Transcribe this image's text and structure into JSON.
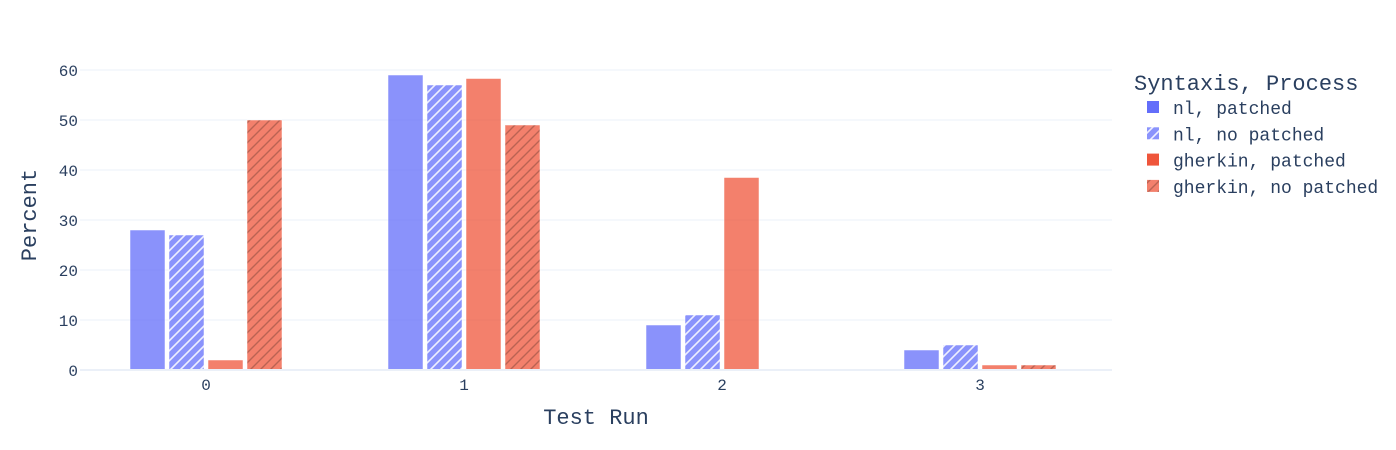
{
  "chart_data": {
    "type": "bar",
    "xlabel": "Test Run",
    "ylabel": "Percent",
    "categories": [
      "0",
      "1",
      "2",
      "3"
    ],
    "ylim": [
      0,
      62
    ],
    "yticks": [
      0,
      10,
      20,
      30,
      40,
      50,
      60
    ],
    "grid": true,
    "legend": {
      "title": "Syntaxis, Process",
      "placement": "right"
    },
    "series": [
      {
        "name": "nl, patched",
        "values": [
          28,
          59,
          9,
          4
        ],
        "color": "#636efa",
        "pattern": "none"
      },
      {
        "name": "nl, no patched",
        "values": [
          27,
          57,
          11,
          5
        ],
        "color": "#636efa",
        "pattern": "hatch"
      },
      {
        "name": "gherkin, patched",
        "values": [
          2,
          58.3,
          38.5,
          1
        ],
        "color": "#ef553b",
        "pattern": "none"
      },
      {
        "name": "gherkin, no patched",
        "values": [
          50,
          49,
          0,
          1
        ],
        "color": "#ef553b",
        "pattern": "hatch"
      }
    ]
  }
}
